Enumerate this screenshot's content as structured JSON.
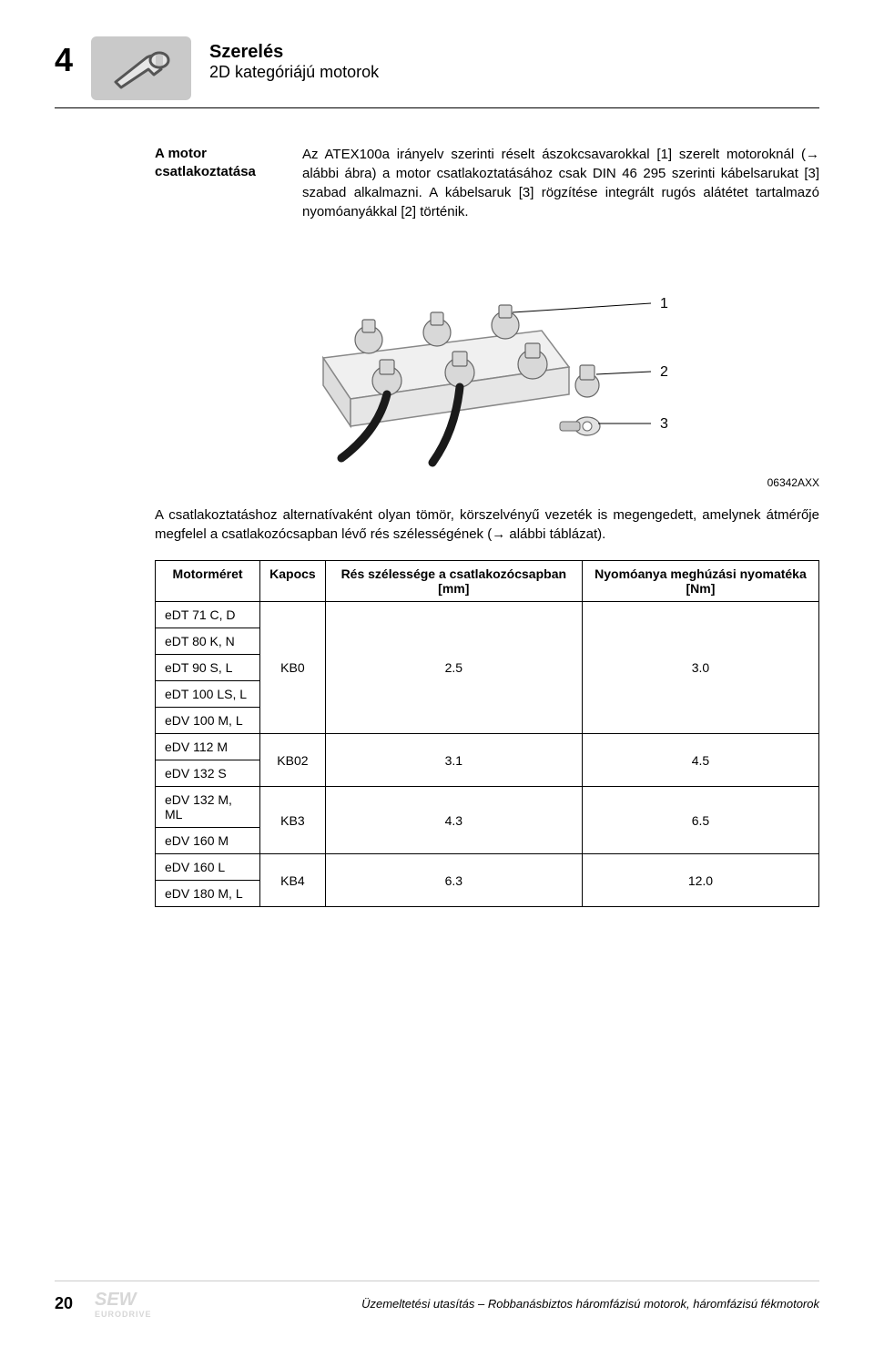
{
  "header": {
    "chapter_number": "4",
    "title_line1": "Szerelés",
    "title_line2": "2D kategóriájú motorok",
    "icon_name": "wrench-icon",
    "icon_bg": "#c9c9c9",
    "icon_stroke": "#555555"
  },
  "section": {
    "side_label": "A motor csatlakoztatása",
    "paragraph1": "Az ATEX100a irányelv szerinti réselt ászokcsavarokkal [1] szerelt motoroknál (→ alábbi ábra) a motor csatlakoztatásához csak DIN 46 295 szerinti kábelsarukat [3] szabad alkalmazni. A kábelsaruk [3] rögzítése integrált rugós alátétet tartalmazó nyomóanyákkal [2] történik.",
    "figure": {
      "labels": [
        "1",
        "2",
        "3"
      ],
      "label_fontsize": 16,
      "block_fill": "#f0f0f0",
      "block_stroke": "#888888",
      "bolt_fill": "#d8d8d8",
      "bolt_stroke": "#666666",
      "wire_color": "#1a1a1a",
      "pointer_color": "#000000",
      "code": "06342AXX"
    },
    "paragraph2": "A csatlakoztatáshoz alternatívaként olyan tömör, körszelvényű vezeték is megengedett, amelynek átmérője megfelel a csatlakozócsapban lévő rés szélességének (→ alábbi táblázat)."
  },
  "table": {
    "columns": [
      "Motorméret",
      "Kapocs",
      "Rés szélessége a csatlakozócsapban [mm]",
      "Nyomóanya meghúzási nyomatéka [Nm]"
    ],
    "groups": [
      {
        "motors": [
          "eDT 71 C, D",
          "eDT 80 K, N",
          "eDT 90 S, L",
          "eDT 100 LS, L",
          "eDV 100 M, L"
        ],
        "kapocs": "KB0",
        "gap": "2.5",
        "torque": "3.0"
      },
      {
        "motors": [
          "eDV 112 M",
          "eDV 132 S"
        ],
        "kapocs": "KB02",
        "gap": "3.1",
        "torque": "4.5"
      },
      {
        "motors": [
          "eDV 132 M, ML",
          "eDV 160 M"
        ],
        "kapocs": "KB3",
        "gap": "4.3",
        "torque": "6.5"
      },
      {
        "motors": [
          "eDV 160 L",
          "eDV 180 M, L"
        ],
        "kapocs": "KB4",
        "gap": "6.3",
        "torque": "12.0"
      }
    ],
    "col_align": [
      "left",
      "center",
      "center",
      "center"
    ]
  },
  "footer": {
    "page_number": "20",
    "logo_text_top": "SEW",
    "logo_text_bottom": "EURODRIVE",
    "logo_color": "#d7d7d7",
    "text": "Üzemeltetési utasítás – Robbanásbiztos háromfázisú motorok, háromfázisú fékmotorok"
  }
}
